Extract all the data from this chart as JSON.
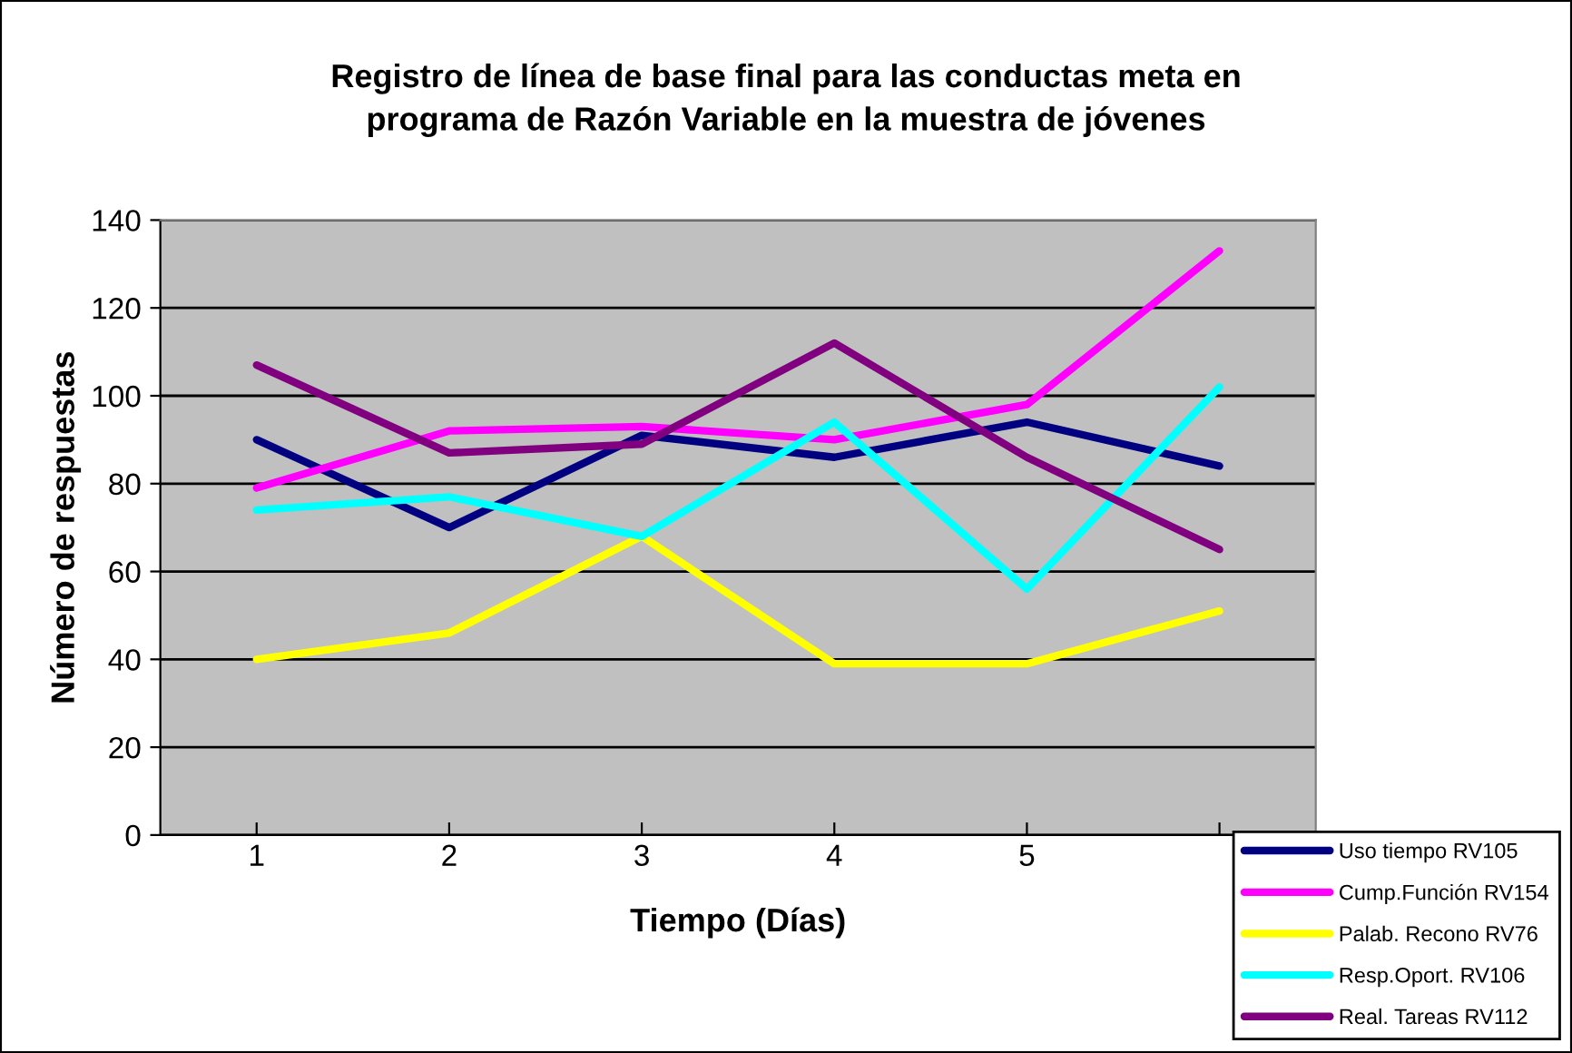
{
  "chart_data": {
    "type": "line",
    "title": "Registro de línea de base final para las conductas meta en\nprograma de Razón Variable en la muestra de jóvenes",
    "xlabel": "Tiempo (Días)",
    "ylabel": "Número de respuestas",
    "categories": [
      "1",
      "2",
      "3",
      "4",
      "5",
      null
    ],
    "series": [
      {
        "name": "Uso tiempo RV105",
        "color": "#000080",
        "values": [
          90,
          70,
          91,
          86,
          94,
          84
        ]
      },
      {
        "name": "Cump.Función RV154",
        "color": "#ff00ff",
        "values": [
          79,
          92,
          93,
          90,
          98,
          133
        ]
      },
      {
        "name": "Palab. Recono RV76",
        "color": "#ffff00",
        "values": [
          40,
          46,
          68,
          39,
          39,
          51
        ]
      },
      {
        "name": "Resp.Oport. RV106",
        "color": "#00ffff",
        "values": [
          74,
          77,
          68,
          94,
          56,
          102
        ]
      },
      {
        "name": "Real. Tareas RV112",
        "color": "#800080",
        "values": [
          107,
          87,
          89,
          112,
          86,
          65
        ]
      }
    ],
    "ylim": [
      0,
      140
    ],
    "yticks": [
      0,
      20,
      40,
      60,
      80,
      100,
      120,
      140
    ],
    "grid": "y",
    "legend": "bottom right",
    "marker": "none",
    "line_style": "solid"
  }
}
